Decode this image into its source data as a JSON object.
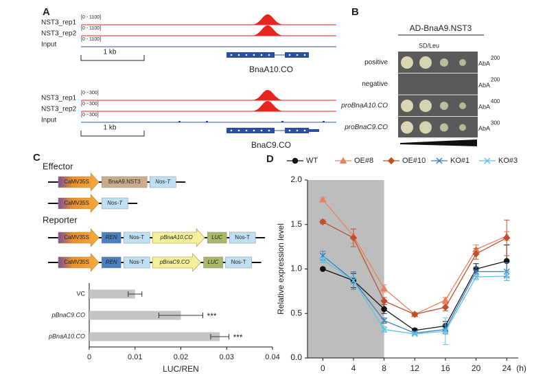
{
  "panel_a": {
    "label": "A",
    "groups": [
      {
        "tracks": [
          {
            "name": "NST3_rep1",
            "range": "[0 - 1100]"
          },
          {
            "name": "NST3_rep2",
            "range": "[0 - 1100]"
          },
          {
            "name": "Input",
            "range": "[0 - 1100]"
          }
        ],
        "scale": "1 kb",
        "gene": "BnaA10.CO"
      },
      {
        "tracks": [
          {
            "name": "NST3_rep1",
            "range": "[0 - 300]"
          },
          {
            "name": "NST3_rep2",
            "range": "[0 - 300]"
          },
          {
            "name": "Input",
            "range": "[0 - 300]"
          }
        ],
        "scale": "1 kb",
        "gene": "BnaC9.CO"
      }
    ]
  },
  "panel_b": {
    "label": "B",
    "title": "AD-BnaA9.NST3",
    "medium": "SD/Leu",
    "rows": [
      {
        "name": "positive",
        "aba": "AbA",
        "conc": 200
      },
      {
        "name": "negative",
        "aba": "AbA",
        "conc": 200
      },
      {
        "name": "proBnaA10.CO",
        "aba": "AbA",
        "conc": 400
      },
      {
        "name": "proBnaC9.CO",
        "aba": "AbA",
        "conc": 300
      }
    ]
  },
  "panel_c": {
    "label": "C",
    "effector_title": "Effector",
    "reporter_title": "Reporter",
    "effectors": [
      [
        {
          "text": "CaMV35S",
          "shape": "arrow",
          "color": "url(#prom)"
        },
        {
          "text": "BnaA9.NST3",
          "shape": "box",
          "color": "#c9ad8c"
        },
        {
          "text": "Nos-T",
          "shape": "box",
          "color": "#bfe0f2",
          "italic": true
        }
      ],
      [
        {
          "text": "CaMV35S",
          "shape": "arrow",
          "color": "url(#prom)"
        },
        {
          "text": "Nos-T",
          "shape": "box",
          "color": "#bfe0f2",
          "italic": true
        }
      ]
    ],
    "reporters": [
      [
        {
          "text": "CaMV35S",
          "shape": "arrow",
          "color": "url(#prom)"
        },
        {
          "text": "REN",
          "shape": "box",
          "color": "#4a7fc0",
          "italic": true
        },
        {
          "text": "Nos-T",
          "shape": "box",
          "color": "#bfe0f2"
        },
        {
          "text": "pBnaA10.CO",
          "shape": "arrow",
          "color": "#f4ef9a",
          "italic": true
        },
        {
          "text": "LUC",
          "shape": "box",
          "color": "#a8b96a",
          "italic": true
        },
        {
          "text": "Nos-T",
          "shape": "box",
          "color": "#bfe0f2"
        }
      ],
      [
        {
          "text": "CaMV35S",
          "shape": "arrow",
          "color": "url(#prom)"
        },
        {
          "text": "REN",
          "shape": "box",
          "color": "#4a7fc0",
          "italic": true
        },
        {
          "text": "Nos-T",
          "shape": "box",
          "color": "#bfe0f2"
        },
        {
          "text": "pBnaC9.CO",
          "shape": "arrow",
          "color": "#f4ef9a",
          "italic": true
        },
        {
          "text": "LUC",
          "shape": "box",
          "color": "#a8b96a",
          "italic": true
        },
        {
          "text": "Nos-T",
          "shape": "box",
          "color": "#bfe0f2"
        }
      ]
    ]
  },
  "panel_d": {
    "label": "D"
  },
  "chart_data": [
    {
      "type": "hbar",
      "categories": [
        "VC",
        "pBnaC9.CO",
        "pBnaA10.CO"
      ],
      "italic_categories": [
        false,
        true,
        true
      ],
      "values": [
        0.01,
        0.02,
        0.0285
      ],
      "errors": [
        0.0015,
        0.0048,
        0.002
      ],
      "significance": [
        null,
        "***",
        "***"
      ],
      "color": "#c4c4c4",
      "xlim": [
        0,
        0.04
      ],
      "xticks": [
        0,
        0.01,
        0.02,
        0.03,
        0.04
      ],
      "xlabel": "LUC/REN"
    },
    {
      "type": "line",
      "x": [
        0,
        4,
        8,
        12,
        16,
        20,
        24
      ],
      "xlim": [
        -2,
        25.5
      ],
      "xticks": [
        0,
        4,
        8,
        12,
        16,
        20,
        24
      ],
      "xlabel": "(h)",
      "ylim": [
        0,
        2
      ],
      "yticks": [
        {
          "value": 0,
          "label": "0.0"
        },
        0.5,
        {
          "value": 1,
          "label": "1.0"
        },
        1.5,
        {
          "value": 2,
          "label": "2.0"
        }
      ],
      "ylabel": "Relative expression level",
      "shade": [
        -2,
        8
      ],
      "shade_color": "#bdbdbd",
      "series": [
        {
          "name": "WT",
          "color": "#111111",
          "marker": "circle",
          "values": [
            1.0,
            0.87,
            0.55,
            0.31,
            0.36,
            1.0,
            1.09
          ],
          "errors": [
            0.01,
            0.08,
            0.05,
            0.02,
            0.05,
            0.06,
            0.18
          ]
        },
        {
          "name": "OE#8",
          "color": "#e8825a",
          "marker": "triangle",
          "values": [
            1.78,
            1.37,
            0.78,
            0.49,
            0.65,
            1.22,
            1.37
          ],
          "errors": [
            0.02,
            0.08,
            0.04,
            0.02,
            0.03,
            0.05,
            0.05
          ]
        },
        {
          "name": "OE#10",
          "color": "#c0502a",
          "marker": "diamond",
          "values": [
            1.53,
            1.35,
            0.64,
            0.49,
            0.57,
            1.17,
            1.35
          ],
          "errors": [
            0.02,
            0.1,
            0.04,
            0.02,
            0.04,
            0.06,
            0.2
          ]
        },
        {
          "name": "KO#1",
          "color": "#3a7fc0",
          "marker": "x",
          "values": [
            1.15,
            0.87,
            0.42,
            0.28,
            0.32,
            0.97,
            0.97
          ],
          "errors": [
            0.05,
            0.1,
            0.03,
            0.02,
            0.05,
            0.05,
            0.1
          ]
        },
        {
          "name": "KO#3",
          "color": "#5bc3e6",
          "marker": "x",
          "values": [
            1.1,
            0.87,
            0.32,
            0.27,
            0.3,
            0.91,
            0.92
          ],
          "errors": [
            0.03,
            0.04,
            0.03,
            0.01,
            0.15,
            0.03,
            0.05
          ]
        }
      ]
    }
  ]
}
